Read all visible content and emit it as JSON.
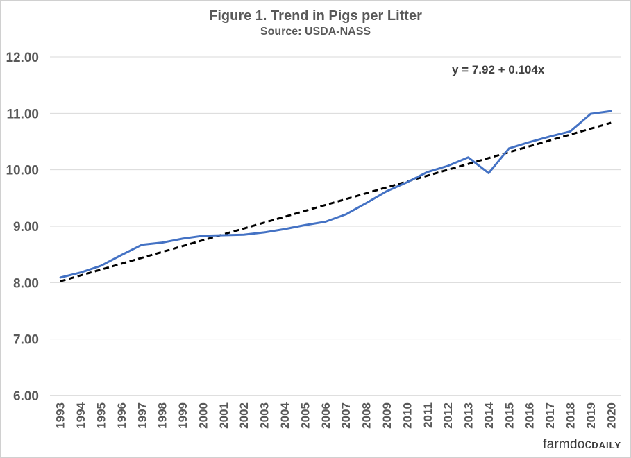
{
  "chart_data": {
    "type": "line",
    "title": "Figure  1.  Trend in Pigs per Litter",
    "subtitle": "Source: USDA-NASS",
    "xlabel": "",
    "ylabel": "",
    "categories": [
      "1993",
      "1994",
      "1995",
      "1996",
      "1997",
      "1998",
      "1999",
      "2000",
      "2001",
      "2002",
      "2003",
      "2004",
      "2005",
      "2006",
      "2007",
      "2008",
      "2009",
      "2010",
      "2011",
      "2012",
      "2013",
      "2014",
      "2015",
      "2016",
      "2017",
      "2018",
      "2019",
      "2020"
    ],
    "yticks": [
      "6.00",
      "7.00",
      "8.00",
      "9.00",
      "10.00",
      "11.00",
      "12.00"
    ],
    "ylim": [
      6,
      12
    ],
    "grid": true,
    "series": [
      {
        "name": "",
        "color": "#4472C4",
        "style": "solid",
        "values": [
          8.09,
          8.18,
          8.3,
          8.49,
          8.67,
          8.71,
          8.78,
          8.83,
          8.84,
          8.85,
          8.89,
          8.95,
          9.02,
          9.08,
          9.21,
          9.41,
          9.62,
          9.78,
          9.96,
          10.07,
          10.22,
          9.94,
          10.38,
          10.49,
          10.59,
          10.68,
          10.99,
          11.04
        ]
      }
    ],
    "trendline": {
      "style": "dashed",
      "color": "#000000",
      "intercept": 7.92,
      "slope": 0.104,
      "label": "y = 7.92 + 0.104x"
    },
    "legend": "none"
  },
  "branding": {
    "logo_main": "farmdoc",
    "logo_sub": "DAILY"
  }
}
